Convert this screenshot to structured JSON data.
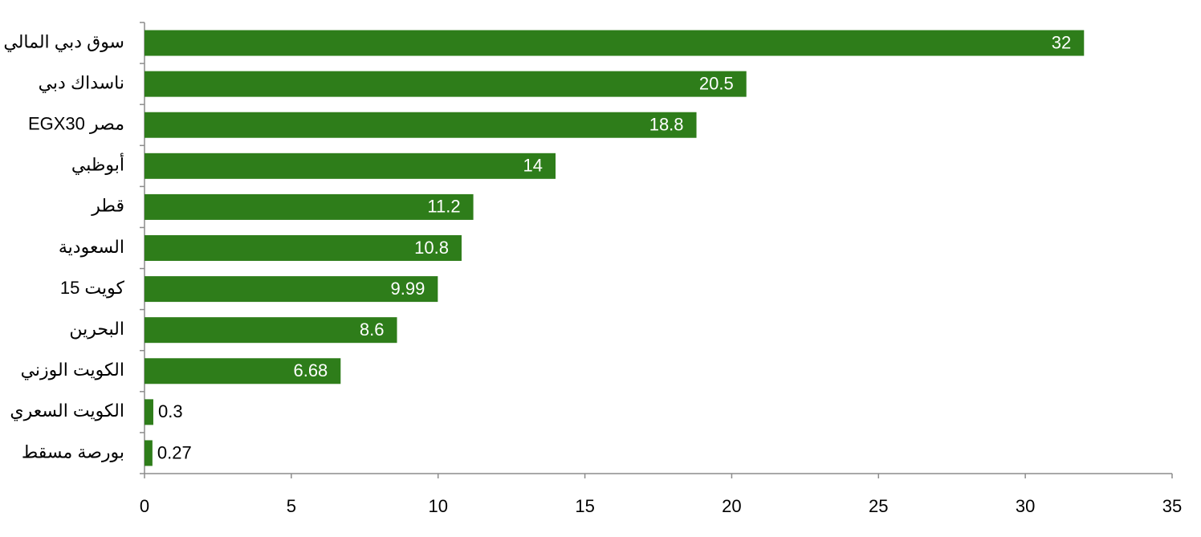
{
  "chart_data": {
    "type": "hbar",
    "categories": [
      "سوق دبي المالي",
      "ناسداك دبي",
      "مصر EGX30",
      "أبوظبي",
      "قطر",
      "السعودية",
      "كويت 15",
      "البحرين",
      "الكويت الوزني",
      "الكويت السعري",
      "بورصة مسقط"
    ],
    "values": [
      32,
      20.5,
      18.8,
      14,
      11.2,
      10.8,
      9.99,
      8.6,
      6.68,
      0.3,
      0.27
    ],
    "color": "#2e7d1a",
    "xlim": [
      0,
      35
    ],
    "xticks": [
      0,
      5,
      10,
      15,
      20,
      25,
      30,
      35
    ]
  }
}
